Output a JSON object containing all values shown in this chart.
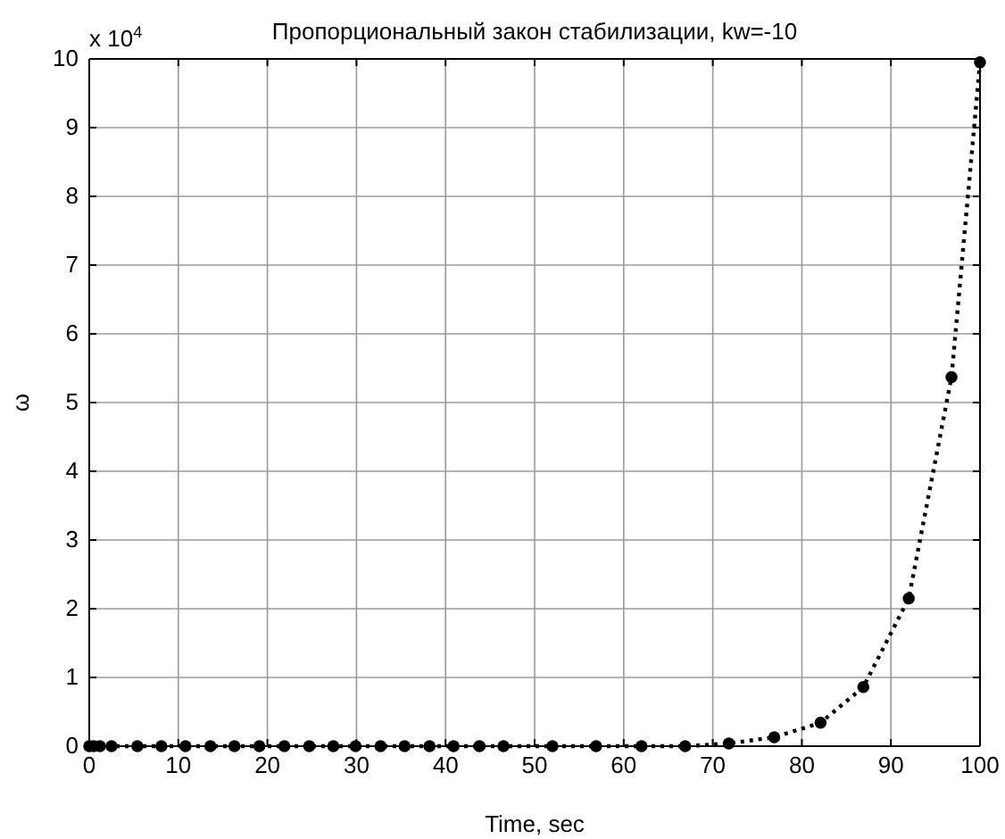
{
  "chart_data": {
    "type": "line",
    "title": "Пропорциональный закон стабилизации, kw=-10",
    "xlabel": "Time, sec",
    "ylabel": "ω",
    "annotations": [
      "x 10$^{4}$"
    ],
    "x": [
      0,
      0.5,
      1.2,
      2.5,
      5.4,
      8.1,
      10.8,
      13.6,
      16.3,
      19.1,
      21.9,
      24.7,
      27.4,
      29.9,
      32.7,
      35.4,
      38.2,
      40.9,
      43.8,
      46.5,
      52.0,
      56.9,
      62.0,
      66.9,
      71.8,
      76.9,
      82.1,
      86.9,
      92.0,
      96.8,
      100
    ],
    "series": [
      {
        "color": "#000000",
        "values": [
          0,
          0,
          0,
          0,
          0,
          0,
          0,
          0,
          0,
          0,
          0,
          0,
          0,
          0,
          0,
          0,
          0,
          0,
          0,
          0,
          0,
          0,
          0,
          0,
          0.04,
          0.13,
          0.34,
          0.86,
          2.15,
          5.37,
          9.95
        ]
      }
    ],
    "xlim": [
      0,
      100
    ],
    "xticks": [
      0,
      10,
      20,
      30,
      40,
      50,
      60,
      70,
      80,
      90,
      100
    ],
    "ylim": [
      0,
      10
    ],
    "yticks": [
      0,
      1,
      2,
      3,
      4,
      5,
      6,
      7,
      8,
      9,
      10
    ],
    "grid": true,
    "marker": "circle",
    "line_style": "dotted"
  }
}
